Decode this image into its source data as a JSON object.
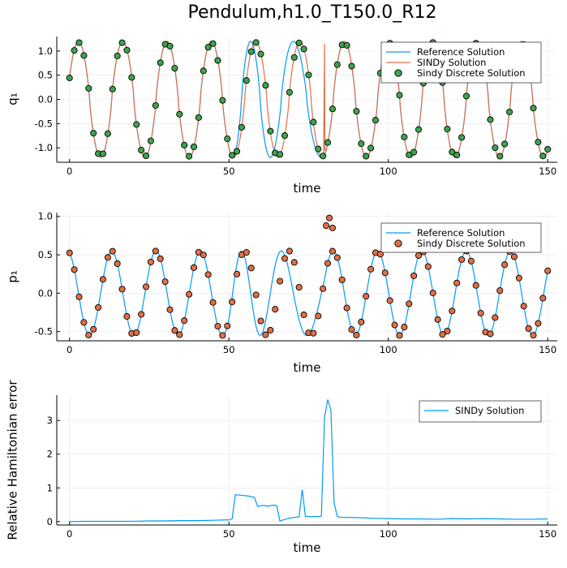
{
  "title": "Pendulum,h1.0_T150.0_R12",
  "colors": {
    "reference": "#009af9",
    "sindy": "#e26f46",
    "discrete_q": "#3da44d",
    "discrete_p": "#e26f46",
    "grid": "#e6e6e6"
  },
  "chart_data": [
    {
      "type": "line",
      "name": "q1",
      "xlabel": "time",
      "ylabel": "q₁",
      "xlim": [
        -4,
        153
      ],
      "ylim": [
        -1.3,
        1.3
      ],
      "xticks": [
        0,
        50,
        100,
        150
      ],
      "yticks": [
        -1.0,
        -0.5,
        0.0,
        0.5,
        1.0
      ],
      "xtick_labels": [
        "0",
        "50",
        "100",
        "150"
      ],
      "ytick_labels": [
        "-1.0",
        "-0.5",
        "0.0",
        "0.5",
        "1.0"
      ],
      "grid": true,
      "legend_position": "top-right",
      "series": [
        {
          "name": "Reference Solution",
          "style": "line",
          "color": "#009af9",
          "model": {
            "amplitude": 1.2,
            "period": 13.9,
            "phase_shift_segments": [
              [
                50,
                80,
                0.35
              ]
            ]
          }
        },
        {
          "name": "SINDy Solution",
          "style": "line",
          "color": "#e26f46",
          "model": {
            "amplitude": 1.2,
            "period": 13.9,
            "spikes": [
              [
                80,
                1.15
              ]
            ]
          }
        },
        {
          "name": "Sindy Discrete Solution",
          "style": "scatter",
          "color": "#3da44d",
          "step": 1.5
        }
      ]
    },
    {
      "type": "line",
      "name": "p1",
      "xlabel": "time",
      "ylabel": "p₁",
      "xlim": [
        -4,
        153
      ],
      "ylim": [
        -0.62,
        1.05
      ],
      "xticks": [
        0,
        50,
        100,
        150
      ],
      "yticks": [
        -0.5,
        0.0,
        0.5,
        1.0
      ],
      "xtick_labels": [
        "0",
        "50",
        "100",
        "150"
      ],
      "ytick_labels": [
        "-0.5",
        "0.0",
        "0.5",
        "1.0"
      ],
      "grid": true,
      "legend_position": "top-right",
      "series": [
        {
          "name": "Reference Solution",
          "style": "line",
          "color": "#009af9",
          "model": {
            "amplitude": 0.55,
            "period": 13.9
          }
        },
        {
          "name": "Sindy Discrete Solution",
          "style": "scatter",
          "color": "#e26f46",
          "step": 1.5,
          "outliers": [
            [
              80.5,
              0.88
            ],
            [
              81.5,
              0.98
            ],
            [
              82.5,
              0.85
            ]
          ]
        }
      ]
    },
    {
      "type": "line",
      "name": "hamiltonian-error",
      "xlabel": "time",
      "ylabel": "Relative Hamiltonian error",
      "xlim": [
        -4,
        153
      ],
      "ylim": [
        -0.1,
        3.75
      ],
      "xticks": [
        0,
        50,
        100,
        150
      ],
      "yticks": [
        0,
        1,
        2,
        3
      ],
      "xtick_labels": [
        "0",
        "50",
        "100",
        "150"
      ],
      "ytick_labels": [
        "0",
        "1",
        "2",
        "3"
      ],
      "grid": true,
      "legend_position": "top-right",
      "series": [
        {
          "name": "SINDy Solution",
          "style": "line",
          "color": "#009af9",
          "x": [
            0,
            5,
            10,
            15,
            20,
            25,
            30,
            35,
            40,
            45,
            49,
            50,
            51,
            52,
            54,
            56,
            58,
            59,
            60,
            61,
            62,
            64,
            65,
            66,
            67,
            68,
            69,
            70,
            71,
            72,
            73,
            74,
            75,
            76,
            77,
            78,
            79,
            80,
            81,
            82,
            83,
            84,
            85,
            90,
            95,
            100,
            105,
            110,
            115,
            120,
            125,
            130,
            135,
            140,
            145,
            150
          ],
          "y": [
            0.0,
            0.01,
            0.01,
            0.01,
            0.01,
            0.02,
            0.02,
            0.03,
            0.03,
            0.04,
            0.05,
            0.05,
            0.08,
            0.8,
            0.78,
            0.76,
            0.72,
            0.45,
            0.47,
            0.48,
            0.46,
            0.49,
            0.47,
            0.02,
            0.05,
            0.08,
            0.1,
            0.12,
            0.13,
            0.14,
            0.95,
            0.15,
            0.15,
            0.15,
            0.15,
            0.15,
            0.16,
            3.1,
            3.62,
            3.3,
            0.55,
            0.15,
            0.13,
            0.12,
            0.1,
            0.09,
            0.08,
            0.08,
            0.07,
            0.09,
            0.08,
            0.09,
            0.08,
            0.07,
            0.07,
            0.08
          ]
        }
      ]
    }
  ]
}
